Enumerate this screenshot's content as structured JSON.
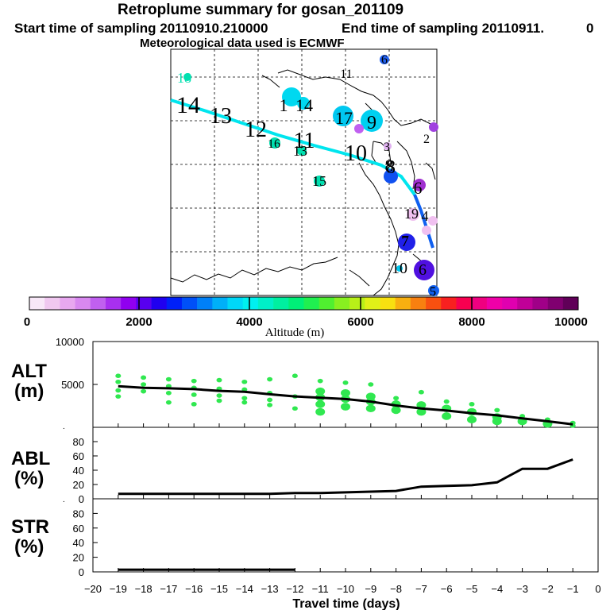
{
  "header": {
    "title": "Retroplume summary for gosan_201109",
    "start": "Start time of sampling 20110910.210000",
    "end": "End time of sampling 20110911.",
    "end_value": "0",
    "met": "Meteorological data used is ECMWF"
  },
  "colorbar": {
    "ticks": [
      "0",
      "2000",
      "4000",
      "6000",
      "8000",
      "10000"
    ],
    "label": "Altitude (m)",
    "colors": [
      "#f8e8f8",
      "#f0c8f0",
      "#e8a8f0",
      "#d888f0",
      "#c060f0",
      "#a830f0",
      "#9000f0",
      "#5800f0",
      "#2000f0",
      "#0020f8",
      "#0050f8",
      "#0080f8",
      "#00b0f8",
      "#00d8f8",
      "#00f0f0",
      "#00f0c8",
      "#00f0a0",
      "#00f078",
      "#20f050",
      "#50f030",
      "#88f020",
      "#b8f018",
      "#e0f018",
      "#f8e010",
      "#f8b010",
      "#f88010",
      "#f85010",
      "#f82020",
      "#f80050",
      "#f00080",
      "#f000a8",
      "#e000b0",
      "#c00098",
      "#a00088",
      "#800070",
      "#600058"
    ]
  },
  "map": {
    "track_color_cyan": "#00e5ee",
    "track_color_blue": "#1060f0",
    "labels": [
      {
        "text": "18",
        "c": "#00e0b0"
      },
      {
        "text": "14",
        "c": "#000"
      },
      {
        "text": "13",
        "c": "#000"
      },
      {
        "text": "12",
        "c": "#000"
      },
      {
        "text": "11",
        "c": "#000"
      },
      {
        "text": "10",
        "c": "#000"
      },
      {
        "text": "9",
        "c": "#000"
      },
      {
        "text": "8",
        "c": "#000"
      },
      {
        "text": "7",
        "c": "#000"
      },
      {
        "text": "6",
        "c": "#000"
      },
      {
        "text": "5",
        "c": "#000"
      },
      {
        "text": "4",
        "c": "#000"
      },
      {
        "text": "3",
        "c": "#000"
      },
      {
        "text": "2",
        "c": "#000"
      },
      {
        "text": "1",
        "c": "#000"
      },
      {
        "text": "14",
        "c": "#000"
      },
      {
        "text": "13",
        "c": "#000"
      },
      {
        "text": "15",
        "c": "#000"
      },
      {
        "text": "16",
        "c": "#000"
      },
      {
        "text": "17",
        "c": "#000"
      },
      {
        "text": "10",
        "c": "#000"
      },
      {
        "text": "11",
        "c": "#000"
      },
      {
        "text": "19",
        "c": "#000"
      },
      {
        "text": "6",
        "c": "#000"
      },
      {
        "text": "8",
        "c": "#000"
      },
      {
        "text": "7",
        "c": "#000"
      },
      {
        "text": "6",
        "c": "#000"
      },
      {
        "text": "5",
        "c": "#000"
      }
    ]
  },
  "panels": {
    "alt": {
      "label1": "ALT",
      "label2": "(m)",
      "yticks": [
        "10000",
        "5000"
      ]
    },
    "abl": {
      "label1": "ABL",
      "label2": "(%)",
      "yticks": [
        "80",
        "60",
        "40",
        "20",
        "0"
      ]
    },
    "str": {
      "label1": "STR",
      "label2": "(%)",
      "yticks": [
        "80",
        "60",
        "40",
        "20",
        "0"
      ]
    },
    "xticks": [
      "−20",
      "−19",
      "−18",
      "−17",
      "−16",
      "−15",
      "−14",
      "−13",
      "−12",
      "−11",
      "−10",
      "−9",
      "−8",
      "−7",
      "−6",
      "−5",
      "−4",
      "−3",
      "−2",
      "−1",
      "0"
    ],
    "xlabel": "Travel time (days)"
  },
  "chart_data": {
    "type": "line",
    "xlabel": "Travel time (days)",
    "x": [
      -19,
      -18,
      -17,
      -16,
      -15,
      -14,
      -13,
      -12,
      -11,
      -10,
      -9,
      -8,
      -7,
      -6,
      -5,
      -4,
      -3,
      -2,
      -1
    ],
    "series": [
      {
        "name": "ALT (m)",
        "values": [
          4800,
          4600,
          4550,
          4450,
          4250,
          4150,
          3850,
          3600,
          3450,
          3300,
          3000,
          2550,
          2200,
          1950,
          1650,
          1400,
          1050,
          700,
          350
        ],
        "ylim": [
          0,
          10000
        ]
      },
      {
        "name": "ABL (%)",
        "values": [
          7,
          7,
          7,
          7,
          7,
          7,
          7,
          8,
          8,
          9,
          10,
          11,
          17,
          18,
          19,
          23,
          42,
          42,
          55
        ],
        "ylim": [
          0,
          100
        ]
      },
      {
        "name": "STR (%)",
        "values": [
          3,
          3,
          3,
          3,
          3,
          3,
          3,
          0,
          0,
          0,
          0,
          0,
          0,
          0,
          0,
          0,
          0,
          0,
          0
        ],
        "ylim": [
          0,
          100
        ]
      }
    ],
    "alt_spread": [
      {
        "x": -19,
        "y": [
          6000,
          5300,
          4300,
          3600
        ]
      },
      {
        "x": -18,
        "y": [
          5800,
          5000,
          4200
        ]
      },
      {
        "x": -17,
        "y": [
          5600,
          4800,
          4000,
          2900
        ]
      },
      {
        "x": -16,
        "y": [
          5400,
          4600,
          3800,
          2700
        ]
      },
      {
        "x": -15,
        "y": [
          5500,
          4500,
          3700,
          3100
        ]
      },
      {
        "x": -14,
        "y": [
          5300,
          4400,
          3400,
          2900
        ]
      },
      {
        "x": -13,
        "y": [
          5600,
          4000,
          3200,
          2600
        ]
      },
      {
        "x": -12,
        "y": [
          6000,
          3600,
          2200
        ]
      },
      {
        "x": -11,
        "y": [
          5400,
          4200,
          3500,
          2700,
          1800
        ]
      },
      {
        "x": -10,
        "y": [
          5200,
          4000,
          3300,
          2400
        ]
      },
      {
        "x": -9,
        "y": [
          5000,
          3600,
          3000,
          2200
        ]
      },
      {
        "x": -8,
        "y": [
          3400,
          2700,
          2000
        ]
      },
      {
        "x": -7,
        "y": [
          4100,
          2600,
          1800
        ]
      },
      {
        "x": -6,
        "y": [
          3000,
          2200,
          1300
        ]
      },
      {
        "x": -5,
        "y": [
          2700,
          1800,
          900
        ]
      },
      {
        "x": -4,
        "y": [
          2000,
          1200,
          700
        ]
      },
      {
        "x": -3,
        "y": [
          1300,
          700
        ]
      },
      {
        "x": -2,
        "y": [
          900,
          400
        ]
      },
      {
        "x": -1,
        "y": [
          500,
          200
        ]
      }
    ]
  }
}
